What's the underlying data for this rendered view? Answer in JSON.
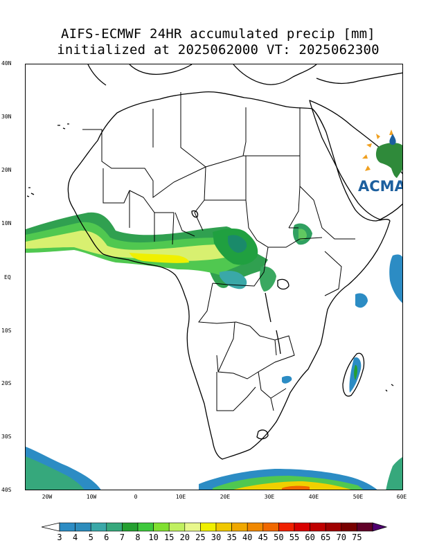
{
  "title": {
    "line1": "AIFS-ECMWF 24HR accumulated precip [mm]",
    "line2": "initialized at 2025062000 VT: 2025062300"
  },
  "lat_labels": [
    "40N",
    "30N",
    "20N",
    "10N",
    "EQ",
    "10S",
    "20S",
    "30S",
    "40S"
  ],
  "lon_labels": [
    "20W",
    "10W",
    "0",
    "10E",
    "20E",
    "30E",
    "40E",
    "50E",
    "60E"
  ],
  "colorbar": {
    "labels": [
      "3",
      "4",
      "5",
      "6",
      "7",
      "8",
      "10",
      "15",
      "20",
      "25",
      "30",
      "35",
      "40",
      "45",
      "50",
      "55",
      "60",
      "65",
      "70",
      "75"
    ],
    "colors": [
      "#2c8cc4",
      "#2c8cbc",
      "#3aa8a8",
      "#36a87c",
      "#24a030",
      "#3ec83c",
      "#80e030",
      "#c0f060",
      "#e8f88c",
      "#f0f000",
      "#f0c800",
      "#f0a800",
      "#f08800",
      "#f06800",
      "#f02000",
      "#d80000",
      "#c00000",
      "#a00000",
      "#780000",
      "#600028",
      "#500070"
    ]
  },
  "logo": {
    "text": "ACMAD"
  }
}
